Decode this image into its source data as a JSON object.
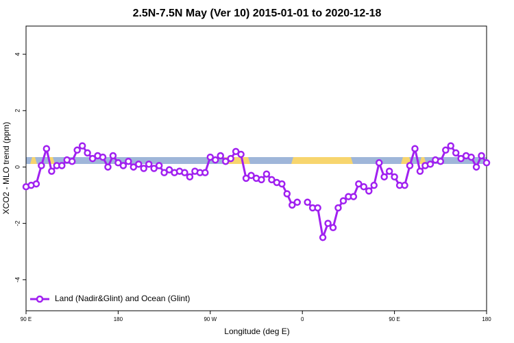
{
  "chart_data": {
    "type": "line",
    "title": "2.5N-7.5N May (Ver 10)   2015-01-01 to 2020-12-18",
    "xlabel": "Longitude (deg E)",
    "ylabel": "XCO2 - MLO trend (ppm)",
    "x": [
      90,
      95,
      100,
      105,
      110,
      115,
      120,
      125,
      130,
      135,
      140,
      145,
      150,
      155,
      160,
      165,
      170,
      175,
      180,
      185,
      190,
      195,
      200,
      205,
      210,
      215,
      220,
      225,
      230,
      235,
      240,
      245,
      250,
      255,
      260,
      265,
      270,
      275,
      280,
      285,
      290,
      295,
      300,
      305,
      310,
      315,
      320,
      325,
      330,
      335,
      340,
      345,
      350,
      355,
      360,
      365,
      370,
      375,
      380,
      385,
      390,
      395,
      400,
      405,
      410,
      415,
      420,
      425,
      430,
      435,
      440,
      445,
      450,
      455,
      460,
      465,
      470,
      475,
      480,
      485,
      490,
      495,
      500,
      505,
      510,
      515,
      520,
      525,
      530,
      535,
      540
    ],
    "series": [
      {
        "name": "Land (Nadir&Glint) and Ocean (Glint)",
        "color": "#a020f0",
        "values": [
          -0.7,
          -0.65,
          -0.6,
          0.05,
          0.65,
          -0.15,
          0.05,
          0.05,
          0.25,
          0.2,
          0.6,
          0.75,
          0.5,
          0.3,
          0.4,
          0.35,
          0,
          0.4,
          0.15,
          0.05,
          0.2,
          0,
          0.1,
          -0.05,
          0.1,
          -0.05,
          0.05,
          -0.2,
          -0.1,
          -0.2,
          -0.15,
          -0.2,
          -0.35,
          -0.15,
          -0.2,
          -0.2,
          0.35,
          0.25,
          0.4,
          0.2,
          0.3,
          0.55,
          0.45,
          -0.4,
          -0.3,
          -0.4,
          -0.45,
          -0.25,
          -0.45,
          -0.55,
          -0.6,
          -0.95,
          -1.35,
          -1.25,
          null,
          -1.25,
          -1.45,
          -1.45,
          -2.5,
          -2.0,
          -2.15,
          -1.45,
          -1.2,
          -1.05,
          -1.05,
          -0.6,
          -0.7,
          -0.85,
          -0.65,
          0.15,
          -0.35,
          -0.15,
          -0.35,
          -0.65,
          -0.65,
          0.05,
          0.65,
          -0.15,
          0.05,
          0.1,
          0.25,
          0.2,
          0.6,
          0.75,
          0.5,
          0.3,
          0.4,
          0.35,
          0,
          0.4,
          0.15
        ]
      }
    ],
    "xlim": [
      90,
      540
    ],
    "xticks": [
      {
        "value": 90,
        "label": "90 E"
      },
      {
        "value": 180,
        "label": "180"
      },
      {
        "value": 270,
        "label": "90 W"
      },
      {
        "value": 360,
        "label": "0"
      },
      {
        "value": 450,
        "label": "90 E"
      },
      {
        "value": 540,
        "label": "180"
      }
    ],
    "ylim": [
      -5.1,
      5
    ],
    "yticks": [
      -4,
      -2,
      0,
      2,
      4
    ],
    "legend": "bottom-left"
  }
}
